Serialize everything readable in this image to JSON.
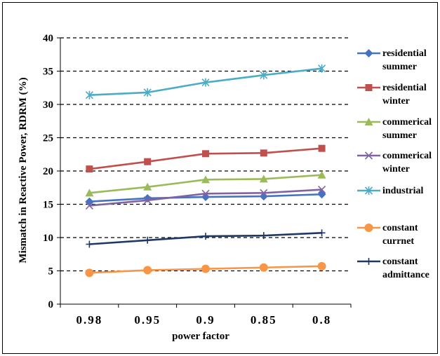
{
  "chart_data": {
    "type": "line",
    "xlabel": "power factor",
    "ylabel": "Mismatch in Reactive Power, RDRM (%)",
    "categories": [
      "0.98",
      "0.95",
      "0.9",
      "0.85",
      "0.8"
    ],
    "ylim": [
      0,
      40
    ],
    "yticks": [
      "0",
      "5",
      "10",
      "15",
      "20",
      "25",
      "30",
      "35",
      "40"
    ],
    "grid": "dashed horizontal",
    "legend_position": "right",
    "series": [
      {
        "name": "residential summer",
        "name_lines": [
          "residential",
          "summer"
        ],
        "color": "#4472C4",
        "marker": "diamond",
        "values": [
          15.4,
          15.9,
          16.1,
          16.2,
          16.5
        ]
      },
      {
        "name": "residential winter",
        "name_lines": [
          "residential",
          "winter"
        ],
        "color": "#C0504D",
        "marker": "square",
        "values": [
          20.3,
          21.4,
          22.6,
          22.7,
          23.4
        ]
      },
      {
        "name": "commerical summer",
        "name_lines": [
          "commerical",
          "summer"
        ],
        "color": "#9BBB59",
        "marker": "triangle",
        "values": [
          16.7,
          17.6,
          18.7,
          18.8,
          19.4
        ]
      },
      {
        "name": "commerical winter",
        "name_lines": [
          "commerical",
          "winter"
        ],
        "color": "#8064A2",
        "marker": "x",
        "values": [
          14.8,
          15.6,
          16.6,
          16.7,
          17.2
        ]
      },
      {
        "name": "industrial",
        "name_lines": [
          "industrial"
        ],
        "color": "#4BACC6",
        "marker": "star",
        "values": [
          31.4,
          31.8,
          33.3,
          34.4,
          35.4
        ]
      },
      {
        "name": "constant currnet",
        "name_lines": [
          "constant",
          "currnet"
        ],
        "color": "#F79646",
        "marker": "circle",
        "values": [
          4.7,
          5.1,
          5.3,
          5.5,
          5.7
        ]
      },
      {
        "name": "constant admittance",
        "name_lines": [
          "constant",
          "admittance"
        ],
        "color": "#1F3864",
        "marker": "plus",
        "values": [
          9.0,
          9.6,
          10.2,
          10.3,
          10.7
        ]
      }
    ]
  }
}
